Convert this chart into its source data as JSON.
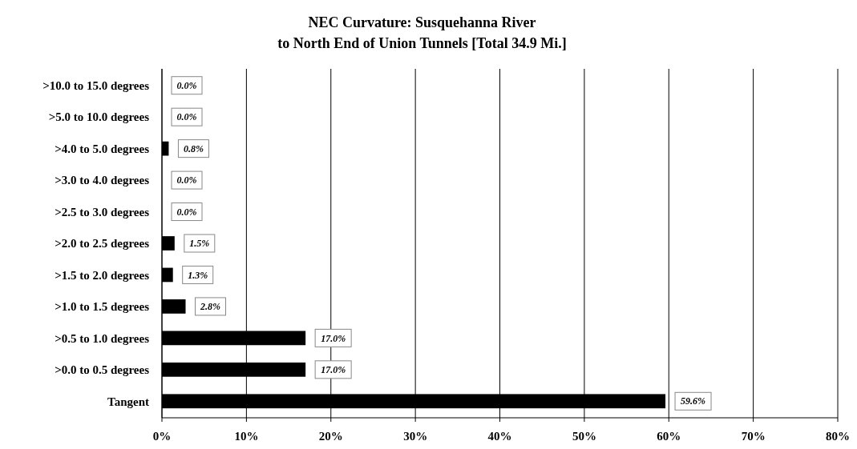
{
  "chart_data": {
    "type": "bar",
    "orientation": "horizontal",
    "title": "NEC Curvature: Susquehanna River\nto North End of Union Tunnels [Total 34.9 Mi.]",
    "categories": [
      ">10.0 to 15.0 degrees",
      ">5.0 to 10.0 degrees",
      ">4.0 to 5.0 degrees",
      ">3.0 to 4.0 degrees",
      ">2.5 to 3.0 degrees",
      ">2.0 to 2.5 degrees",
      ">1.5 to 2.0 degrees",
      ">1.0 to 1.5 degrees",
      ">0.5 to 1.0 degrees",
      ">0.0 to 0.5 degrees",
      "Tangent"
    ],
    "values": [
      0,
      0,
      0.8,
      0,
      0,
      1.5,
      1.3,
      2.8,
      17.0,
      17.0,
      59.6
    ],
    "value_labels": [
      "0.0%",
      "0.0%",
      "0.8%",
      "0.0%",
      "0.0%",
      "1.5%",
      "1.3%",
      "2.8%",
      "17.0%",
      "17.0%",
      "59.6%"
    ],
    "color": "#000000",
    "xlim": [
      0,
      80
    ],
    "xticks": [
      {
        "value": 0,
        "label": "0%"
      },
      {
        "value": 10,
        "label": "10%"
      },
      {
        "value": 20,
        "label": "20%"
      },
      {
        "value": 30,
        "label": "30%"
      },
      {
        "value": 40,
        "label": "40%"
      },
      {
        "value": 50,
        "label": "50%"
      },
      {
        "value": 60,
        "label": "60%"
      },
      {
        "value": 70,
        "label": "70%"
      },
      {
        "value": 80,
        "label": "80%"
      }
    ],
    "grid": "x"
  }
}
